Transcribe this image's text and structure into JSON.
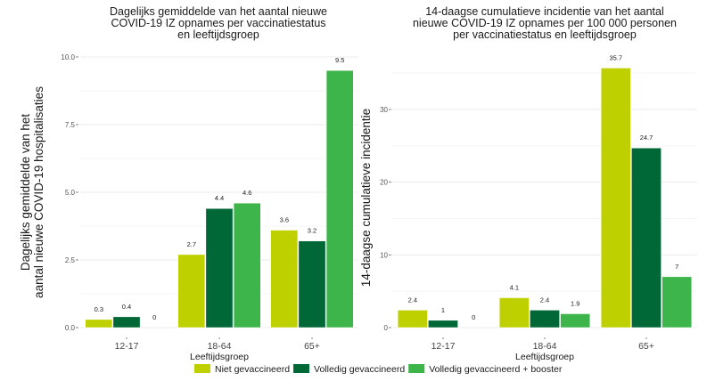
{
  "chart_data": [
    {
      "type": "bar",
      "title": "Dagelijks gemiddelde van het aantal nieuwe\nCOVID-19 IZ opnames per vaccinatiestatus\nen leeftijdsgroep",
      "xlabel": "Leeftijdsgroep",
      "ylabel": "Dagelijks gemiddelde van het\naantal nieuwe COVID-19 hospitalisaties",
      "categories": [
        "12-17",
        "18-64",
        "65+"
      ],
      "yticks": [
        0,
        2.5,
        5,
        7.5,
        10
      ],
      "ytick_labels": [
        "0.0",
        "2.5",
        "5.0",
        "7.5",
        "10.0"
      ],
      "ylim": [
        0,
        10
      ],
      "grid": true,
      "series": [
        {
          "name": "Niet gevaccineerd",
          "values": [
            0.3,
            2.7,
            3.6
          ],
          "labels": [
            "0.3",
            "2.7",
            "3.6"
          ]
        },
        {
          "name": "Volledig gevaccineerd",
          "values": [
            0.4,
            4.4,
            3.2
          ],
          "labels": [
            "0.4",
            "4.4",
            "3.2"
          ]
        },
        {
          "name": "Volledig gevaccineerd + booster",
          "values": [
            0,
            4.6,
            9.5
          ],
          "labels": [
            "0",
            "4.6",
            "9.5"
          ]
        }
      ]
    },
    {
      "type": "bar",
      "title": "14-daagse cumulatieve incidentie van het aantal\nnieuwe COVID-19 IZ opnames per 100 000 personen\nper vaccinatiestatus en leeftijdsgroep",
      "xlabel": "Leeftijdsgroep",
      "ylabel": "14-daagse cumulatieve incidentie",
      "categories": [
        "12-17",
        "18-64",
        "65+"
      ],
      "yticks": [
        0,
        10,
        20,
        30
      ],
      "ytick_labels": [
        "0",
        "10",
        "20",
        "30"
      ],
      "ylim": [
        0,
        35.7
      ],
      "grid": true,
      "series": [
        {
          "name": "Niet gevaccineerd",
          "values": [
            2.4,
            4.1,
            35.7
          ],
          "labels": [
            "2.4",
            "4.1",
            "35.7"
          ]
        },
        {
          "name": "Volledig gevaccineerd",
          "values": [
            1,
            2.4,
            24.7
          ],
          "labels": [
            "1",
            "2.4",
            "24.7"
          ]
        },
        {
          "name": "Volledig gevaccineerd + booster",
          "values": [
            0,
            1.9,
            7
          ],
          "labels": [
            "0",
            "1.9",
            "7"
          ]
        }
      ]
    }
  ],
  "legend": {
    "position": "bottom",
    "items": [
      {
        "label": "Niet gevaccineerd",
        "color": "#bfd000"
      },
      {
        "label": "Volledig gevaccineerd",
        "color": "#006837"
      },
      {
        "label": "Volledig gevaccineerd + booster",
        "color": "#3db54a"
      }
    ]
  }
}
